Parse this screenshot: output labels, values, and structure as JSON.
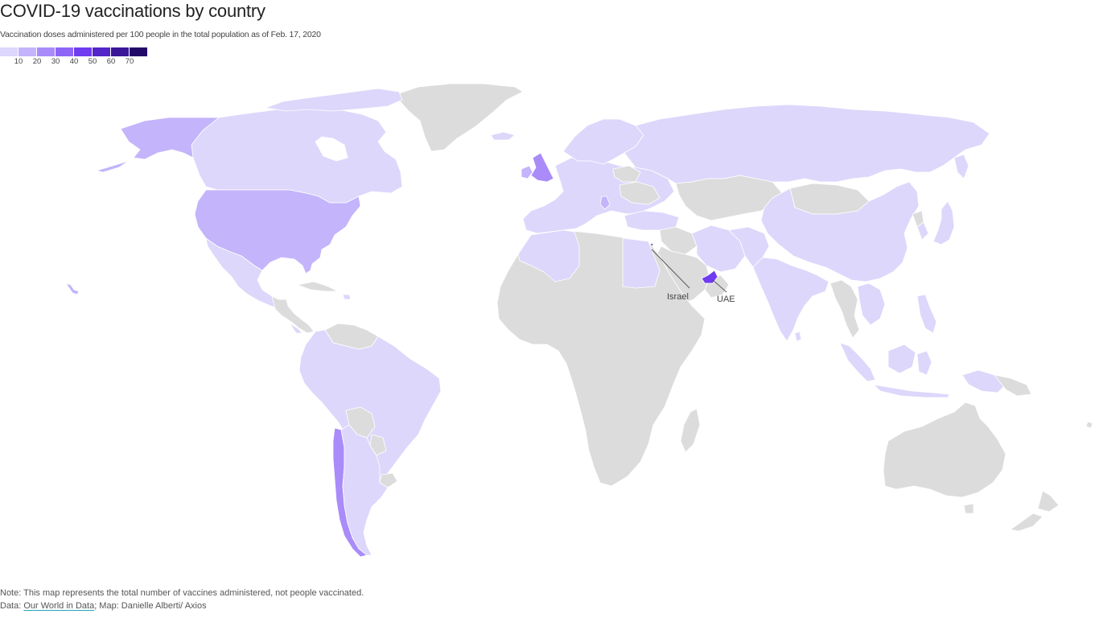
{
  "title": "COVID-19 vaccinations by country",
  "subtitle": "Vaccination doses administered per 100 people in the total population as of Feb. 17, 2020",
  "legend": {
    "colors": [
      "#ddd7fb",
      "#c3b4fb",
      "#a98cf9",
      "#8e66f6",
      "#6f3cf0",
      "#5425c9",
      "#3b1699",
      "#230968"
    ],
    "labels": [
      "10",
      "20",
      "30",
      "40",
      "50",
      "60",
      "70"
    ]
  },
  "colors": {
    "no_data": "#dcdcdc",
    "tier1": "#ddd7fb",
    "tier2": "#c3b4fb",
    "tier3": "#a98cf9",
    "tier5": "#6f3cf0",
    "tier8": "#230968"
  },
  "annotations": {
    "israel": "Israel",
    "uae": "UAE"
  },
  "footer": {
    "note": "Note: This map represents the total number of vaccines administered, not people vaccinated.",
    "data_prefix": "Data: ",
    "data_link": "Our World in Data",
    "map_credit": "; Map: Danielle Alberti/ Axios"
  }
}
